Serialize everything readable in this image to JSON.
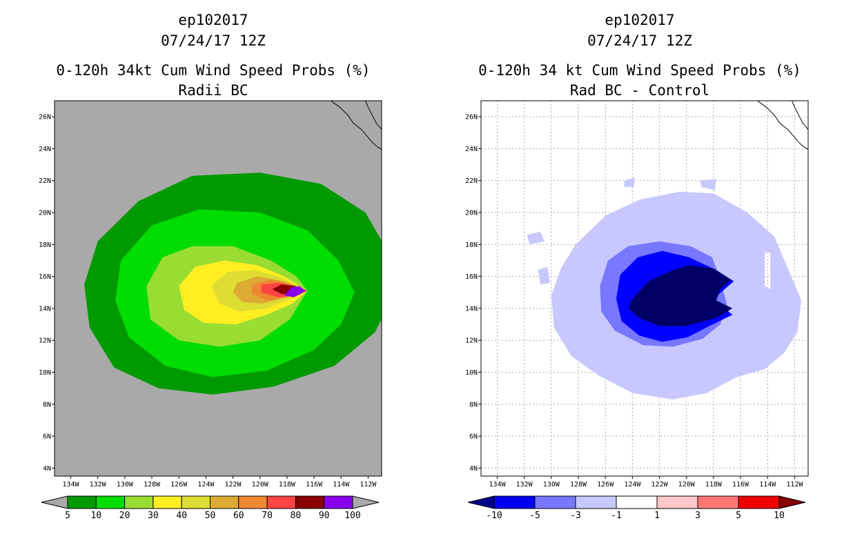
{
  "chart_data": [
    {
      "type": "heatmap",
      "title_lines": [
        "ep102017",
        "07/24/17 12Z",
        "0-120h 34kt Cum Wind Speed Probs (%)",
        "Radii BC"
      ],
      "x_ticks": [
        "134W",
        "132W",
        "130W",
        "128W",
        "126W",
        "124W",
        "122W",
        "120W",
        "118W",
        "116W",
        "114W",
        "112W"
      ],
      "y_ticks": [
        "4N",
        "6N",
        "8N",
        "10N",
        "12N",
        "14N",
        "16N",
        "18N",
        "20N",
        "22N",
        "24N",
        "26N"
      ],
      "xlim": [
        -135.2,
        -111.0
      ],
      "ylim": [
        3.5,
        27.0
      ],
      "background_color": "#a9a9a9",
      "grid": false,
      "center": [
        -116.5,
        15.2
      ],
      "contours": [
        {
          "level": 5,
          "color": "#009900",
          "rings": [
            [
              [
                -110.0,
                15.0
              ],
              [
                -110.5,
                17.5
              ],
              [
                -112.2,
                20.0
              ],
              [
                -115.5,
                21.8
              ],
              [
                -120.0,
                22.5
              ],
              [
                -125.0,
                22.3
              ],
              [
                -129.0,
                20.7
              ],
              [
                -132.0,
                18.2
              ],
              [
                -133.0,
                15.5
              ],
              [
                -132.6,
                12.8
              ],
              [
                -130.8,
                10.3
              ],
              [
                -127.5,
                9.0
              ],
              [
                -123.5,
                8.6
              ],
              [
                -119.0,
                9.1
              ],
              [
                -114.5,
                10.4
              ],
              [
                -111.5,
                12.5
              ]
            ]
          ]
        },
        {
          "level": 10,
          "color": "#00dd00",
          "rings": [
            [
              [
                -113.0,
                15.0
              ],
              [
                -114.2,
                17.0
              ],
              [
                -116.5,
                18.9
              ],
              [
                -120.0,
                20.0
              ],
              [
                -124.5,
                20.2
              ],
              [
                -128.0,
                19.2
              ],
              [
                -130.3,
                17.0
              ],
              [
                -130.7,
                14.5
              ],
              [
                -129.7,
                12.2
              ],
              [
                -127.0,
                10.4
              ],
              [
                -123.5,
                9.7
              ],
              [
                -119.5,
                10.1
              ],
              [
                -116.0,
                11.4
              ],
              [
                -114.0,
                13.0
              ]
            ]
          ]
        },
        {
          "level": 20,
          "color": "#99dd33",
          "rings": [
            [
              [
                -116.5,
                15.1
              ],
              [
                -117.3,
                16.0
              ],
              [
                -119.2,
                17.0
              ],
              [
                -122.0,
                17.9
              ],
              [
                -125.0,
                17.9
              ],
              [
                -127.2,
                17.2
              ],
              [
                -128.4,
                15.4
              ],
              [
                -128.1,
                13.3
              ],
              [
                -126.0,
                12.0
              ],
              [
                -123.0,
                11.6
              ],
              [
                -120.0,
                12.0
              ],
              [
                -117.8,
                13.3
              ]
            ]
          ]
        },
        {
          "level": 30,
          "color": "#ffee22",
          "rings": [
            [
              [
                -116.5,
                15.1
              ],
              [
                -118.2,
                16.0
              ],
              [
                -120.2,
                16.7
              ],
              [
                -122.6,
                17.0
              ],
              [
                -124.8,
                16.6
              ],
              [
                -126.0,
                15.4
              ],
              [
                -125.6,
                13.9
              ],
              [
                -124.2,
                13.1
              ],
              [
                -121.8,
                13.0
              ],
              [
                -119.5,
                13.6
              ],
              [
                -117.6,
                14.3
              ]
            ]
          ]
        },
        {
          "level": 40,
          "color": "#dddd33",
          "rings": [
            [
              [
                -116.5,
                15.1
              ],
              [
                -118.3,
                15.9
              ],
              [
                -120.4,
                16.4
              ],
              [
                -122.4,
                16.3
              ],
              [
                -123.6,
                15.4
              ],
              [
                -123.0,
                14.3
              ],
              [
                -121.5,
                13.8
              ],
              [
                -119.5,
                14.0
              ],
              [
                -117.7,
                14.6
              ]
            ]
          ]
        },
        {
          "level": 50,
          "color": "#ddaa33",
          "rings": [
            [
              [
                -116.5,
                15.1
              ],
              [
                -118.2,
                15.7
              ],
              [
                -120.2,
                16.0
              ],
              [
                -121.7,
                15.6
              ],
              [
                -122.0,
                15.0
              ],
              [
                -121.3,
                14.4
              ],
              [
                -119.8,
                14.3
              ],
              [
                -118.0,
                14.7
              ]
            ]
          ]
        },
        {
          "level": 60,
          "color": "#ee8833",
          "rings": [
            [
              [
                -116.5,
                15.1
              ],
              [
                -117.7,
                15.5
              ],
              [
                -119.2,
                15.8
              ],
              [
                -120.6,
                15.5
              ],
              [
                -120.6,
                14.9
              ],
              [
                -119.5,
                14.5
              ],
              [
                -118.0,
                14.7
              ]
            ]
          ]
        },
        {
          "level": 70,
          "color": "#ff4444",
          "rings": [
            [
              [
                -116.5,
                15.1
              ],
              [
                -117.4,
                15.4
              ],
              [
                -118.6,
                15.6
              ],
              [
                -119.9,
                15.5
              ],
              [
                -119.9,
                15.0
              ],
              [
                -118.7,
                14.7
              ],
              [
                -117.4,
                14.8
              ]
            ]
          ]
        },
        {
          "level": 80,
          "color": "#880000",
          "rings": [
            [
              [
                -116.6,
                15.1
              ],
              [
                -117.4,
                15.4
              ],
              [
                -118.4,
                15.5
              ],
              [
                -119.1,
                15.2
              ],
              [
                -118.4,
                14.9
              ],
              [
                -117.4,
                14.9
              ]
            ]
          ]
        },
        {
          "level": 90,
          "color": "#8800ee",
          "rings": [
            [
              [
                -116.6,
                15.1
              ],
              [
                -117.1,
                15.4
              ],
              [
                -117.7,
                15.3
              ],
              [
                -118.2,
                14.8
              ],
              [
                -117.5,
                14.7
              ],
              [
                -117.0,
                14.9
              ]
            ]
          ]
        }
      ],
      "colorbar": {
        "labels": [
          "5",
          "10",
          "20",
          "30",
          "40",
          "50",
          "60",
          "70",
          "80",
          "90",
          "100"
        ],
        "colors": [
          "#009900",
          "#00dd00",
          "#99dd33",
          "#ffee22",
          "#dddd33",
          "#ddaa33",
          "#ee8833",
          "#ff4444",
          "#880000",
          "#8800ee"
        ],
        "end_colors": [
          "#a9a9a9",
          "#a9a9a9"
        ]
      }
    },
    {
      "type": "heatmap",
      "title_lines": [
        "ep102017",
        "07/24/17 12Z",
        "0-120h 34 kt Cum Wind Speed Probs (%)",
        "Rad BC - Control"
      ],
      "x_ticks": [
        "134W",
        "132W",
        "130W",
        "128W",
        "126W",
        "124W",
        "122W",
        "120W",
        "118W",
        "116W",
        "114W",
        "112W"
      ],
      "y_ticks": [
        "4N",
        "6N",
        "8N",
        "10N",
        "12N",
        "14N",
        "16N",
        "18N",
        "20N",
        "22N",
        "24N",
        "26N"
      ],
      "xlim": [
        -135.2,
        -111.0
      ],
      "ylim": [
        3.5,
        27.0
      ],
      "background_color": "#ffffff",
      "grid": true,
      "contours": [
        {
          "level": -1,
          "color": "#c8c8ff",
          "rings": [
            [
              [
                -111.5,
                14.5
              ],
              [
                -112.5,
                16.5
              ],
              [
                -113.5,
                18.5
              ],
              [
                -115.5,
                20.0
              ],
              [
                -118.0,
                21.2
              ],
              [
                -120.5,
                21.3
              ],
              [
                -123.5,
                20.8
              ],
              [
                -126.0,
                19.8
              ],
              [
                -128.2,
                18.0
              ],
              [
                -129.3,
                16.5
              ],
              [
                -130.0,
                14.8
              ],
              [
                -129.8,
                12.8
              ],
              [
                -128.5,
                11.0
              ],
              [
                -126.5,
                9.8
              ],
              [
                -124.0,
                8.7
              ],
              [
                -121.0,
                8.3
              ],
              [
                -118.5,
                8.7
              ],
              [
                -116.3,
                9.7
              ],
              [
                -114.2,
                10.2
              ],
              [
                -112.8,
                11.2
              ],
              [
                -111.8,
                12.5
              ]
            ],
            [
              [
                -131.8,
                18.6
              ],
              [
                -130.8,
                18.8
              ],
              [
                -130.5,
                18.2
              ],
              [
                -131.6,
                18.0
              ]
            ],
            [
              [
                -131.0,
                16.4
              ],
              [
                -130.3,
                16.6
              ],
              [
                -130.1,
                15.6
              ],
              [
                -130.8,
                15.5
              ]
            ],
            [
              [
                -114.2,
                17.5
              ],
              [
                -113.8,
                17.5
              ],
              [
                -113.8,
                15.2
              ],
              [
                -114.2,
                15.4
              ]
            ],
            [
              [
                -124.6,
                22.0
              ],
              [
                -123.8,
                22.2
              ],
              [
                -123.9,
                21.6
              ],
              [
                -124.6,
                21.6
              ]
            ],
            [
              [
                -119.0,
                22.0
              ],
              [
                -117.8,
                22.1
              ],
              [
                -117.9,
                21.4
              ],
              [
                -118.9,
                21.6
              ]
            ]
          ]
        },
        {
          "level": -3,
          "color": "#7777ff",
          "rings": [
            [
              [
                -117.6,
                16.1
              ],
              [
                -118.1,
                17.2
              ],
              [
                -119.7,
                17.9
              ],
              [
                -122.0,
                18.2
              ],
              [
                -124.3,
                17.9
              ],
              [
                -125.8,
                17.0
              ],
              [
                -126.4,
                15.4
              ],
              [
                -126.3,
                13.8
              ],
              [
                -125.3,
                12.6
              ],
              [
                -123.2,
                11.7
              ],
              [
                -121.0,
                11.6
              ],
              [
                -118.8,
                12.1
              ],
              [
                -117.5,
                13.0
              ],
              [
                -117.0,
                14.2
              ]
            ]
          ]
        },
        {
          "level": -5,
          "color": "#0000ff",
          "rings": [
            [
              [
                -116.5,
                15.7
              ],
              [
                -117.8,
                16.4
              ],
              [
                -119.8,
                17.2
              ],
              [
                -121.8,
                17.6
              ],
              [
                -123.6,
                17.2
              ],
              [
                -124.9,
                16.1
              ],
              [
                -125.2,
                14.6
              ],
              [
                -124.8,
                13.2
              ],
              [
                -123.5,
                12.3
              ],
              [
                -121.8,
                11.9
              ],
              [
                -119.9,
                12.2
              ],
              [
                -118.3,
                12.9
              ],
              [
                -116.6,
                13.6
              ],
              [
                -118.0,
                14.6
              ]
            ]
          ]
        },
        {
          "level": -10,
          "color": "#000066",
          "rings": [
            [
              [
                -116.7,
                15.8
              ],
              [
                -118.0,
                16.5
              ],
              [
                -119.8,
                16.7
              ],
              [
                -121.0,
                16.4
              ],
              [
                -122.8,
                15.7
              ],
              [
                -124.0,
                14.6
              ],
              [
                -124.3,
                14.0
              ],
              [
                -123.5,
                13.4
              ],
              [
                -122.0,
                12.9
              ],
              [
                -120.0,
                12.9
              ],
              [
                -117.8,
                13.4
              ],
              [
                -116.6,
                14.0
              ],
              [
                -117.8,
                14.5
              ],
              [
                -117.5,
                15.2
              ]
            ]
          ]
        }
      ],
      "colorbar": {
        "labels": [
          "-10",
          "-5",
          "-3",
          "-1",
          "1",
          "3",
          "5",
          "10"
        ],
        "colors": [
          "#0000ee",
          "#7777ff",
          "#c8c8ff",
          "#ffffff",
          "#ffc8c8",
          "#ff7777",
          "#ee0000"
        ],
        "end_colors": [
          "#000088",
          "#880000"
        ]
      }
    }
  ]
}
